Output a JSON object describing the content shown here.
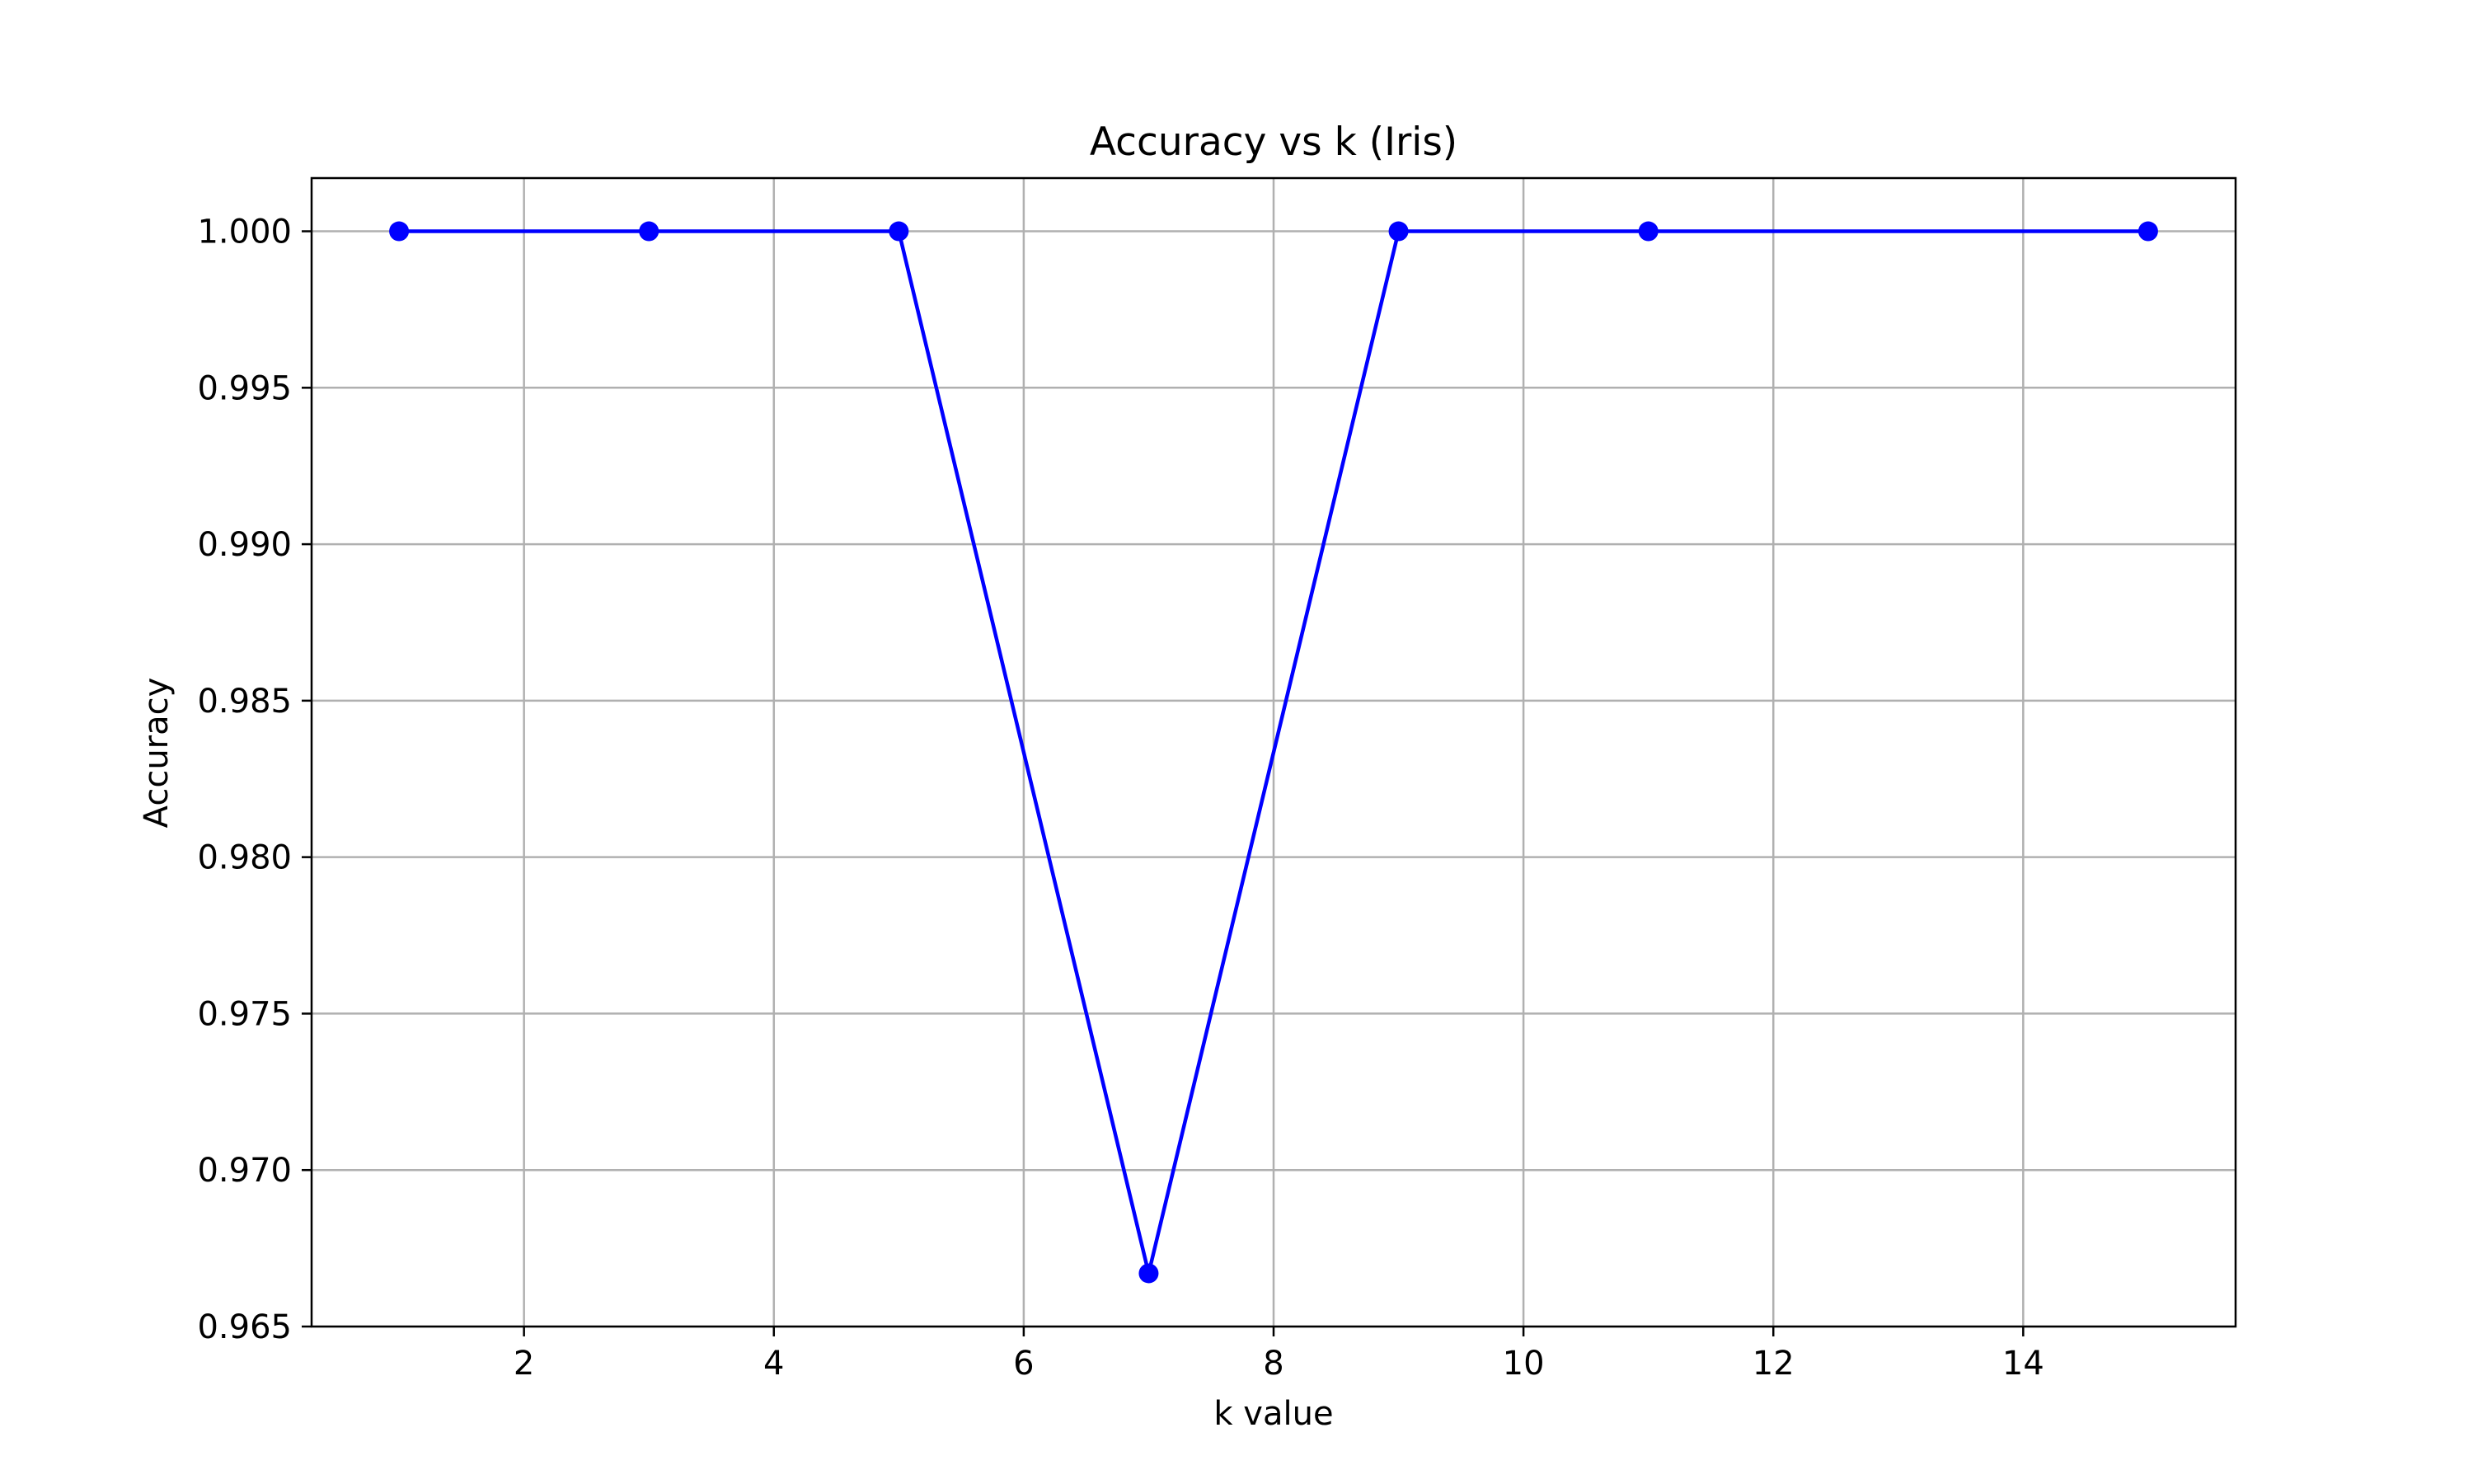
{
  "chart_data": {
    "type": "line",
    "title": "Accuracy vs k (Iris)",
    "xlabel": "k value",
    "ylabel": "Accuracy",
    "xlim": [
      0.3,
      15.7
    ],
    "ylim": [
      0.965,
      1.0017
    ],
    "x_ticks": [
      2,
      4,
      6,
      8,
      10,
      12,
      14
    ],
    "y_ticks": [
      0.965,
      0.97,
      0.975,
      0.98,
      0.985,
      0.99,
      0.995,
      1.0
    ],
    "x_tick_labels": [
      "2",
      "4",
      "6",
      "8",
      "10",
      "12",
      "14"
    ],
    "y_tick_labels": [
      "0.965",
      "0.970",
      "0.975",
      "0.980",
      "0.985",
      "0.990",
      "0.995",
      "1.000"
    ],
    "grid": true,
    "series": [
      {
        "x": [
          1,
          3,
          5,
          7,
          9,
          11,
          15
        ],
        "y": [
          1.0,
          1.0,
          1.0,
          0.9667,
          1.0,
          1.0,
          1.0
        ],
        "color": "#0000ff",
        "marker": "circle"
      }
    ]
  }
}
